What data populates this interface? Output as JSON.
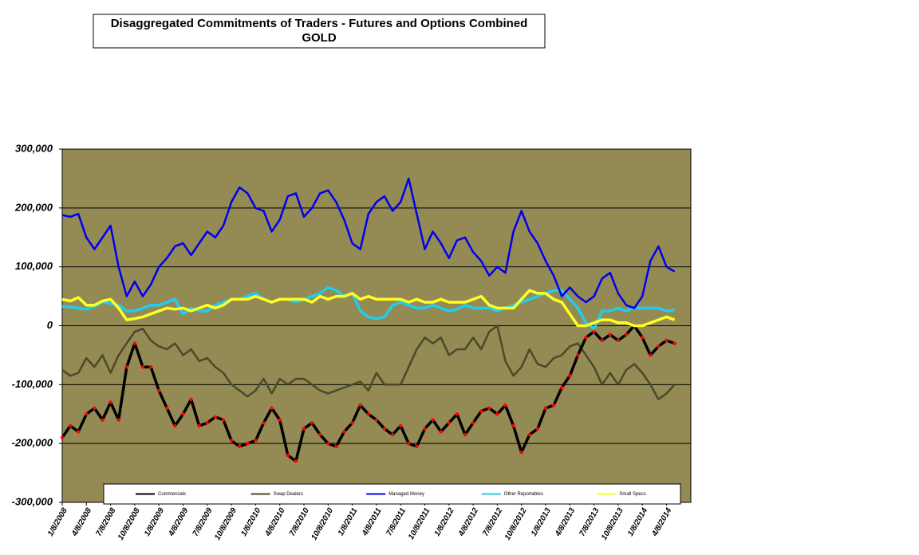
{
  "chart_data": {
    "type": "line",
    "title": "Disaggregated Commitments of Traders - Futures and Options Combined",
    "subtitle": "GOLD",
    "categories": [
      "1/8/2008",
      null,
      null,
      "4/8/2008",
      null,
      null,
      "7/8/2008",
      null,
      null,
      "10/8/2008",
      null,
      null,
      "1/8/2009",
      null,
      null,
      "4/8/2009",
      null,
      null,
      "7/8/2009",
      null,
      null,
      "10/8/2009",
      null,
      null,
      "1/8/2010",
      null,
      null,
      "4/8/2010",
      null,
      null,
      "7/8/2010",
      null,
      null,
      "10/8/2010",
      null,
      null,
      "1/8/2011",
      null,
      null,
      "4/8/2011",
      null,
      null,
      "7/8/2011",
      null,
      null,
      "10/8/2011",
      null,
      null,
      "1/8/2012",
      null,
      null,
      "4/8/2012",
      null,
      null,
      "7/8/2012",
      null,
      null,
      "10/8/2012",
      null,
      null,
      "1/8/2013",
      null,
      null,
      "4/8/2013",
      null,
      null,
      "7/8/2013",
      null,
      null,
      "10/8/2013",
      null,
      null,
      "1/8/2014",
      null,
      null,
      "4/8/2014",
      null
    ],
    "series": [
      {
        "name": "Commercials",
        "color": "#000000",
        "marker_color": "#ff0000",
        "values": [
          -190000,
          -170000,
          -180000,
          -150000,
          -140000,
          -160000,
          -130000,
          -160000,
          -70000,
          -30000,
          -70000,
          -70000,
          -110000,
          -140000,
          -170000,
          -150000,
          -125000,
          -170000,
          -165000,
          -155000,
          -160000,
          -195000,
          -205000,
          -200000,
          -195000,
          -165000,
          -140000,
          -160000,
          -220000,
          -230000,
          -175000,
          -165000,
          -185000,
          -200000,
          -205000,
          -180000,
          -165000,
          -135000,
          -150000,
          -160000,
          -175000,
          -185000,
          -170000,
          -200000,
          -205000,
          -175000,
          -160000,
          -180000,
          -165000,
          -150000,
          -185000,
          -165000,
          -145000,
          -140000,
          -150000,
          -135000,
          -170000,
          -215000,
          -185000,
          -175000,
          -140000,
          -135000,
          -105000,
          -85000,
          -50000,
          -20000,
          -10000,
          -25000,
          -15000,
          -25000,
          -15000,
          0,
          -20000,
          -50000,
          -35000,
          -25000,
          -30000
        ]
      },
      {
        "name": "Swap Dealers",
        "color": "#4a4a2a",
        "values": [
          -75000,
          -85000,
          -80000,
          -55000,
          -70000,
          -50000,
          -80000,
          -50000,
          -30000,
          -10000,
          -5000,
          -25000,
          -35000,
          -40000,
          -30000,
          -50000,
          -40000,
          -60000,
          -55000,
          -70000,
          -80000,
          -100000,
          -110000,
          -120000,
          -110000,
          -90000,
          -115000,
          -90000,
          -100000,
          -90000,
          -90000,
          -100000,
          -110000,
          -115000,
          -110000,
          -105000,
          -100000,
          -95000,
          -110000,
          -80000,
          -100000,
          -100000,
          -100000,
          -70000,
          -40000,
          -20000,
          -30000,
          -20000,
          -50000,
          -40000,
          -40000,
          -20000,
          -40000,
          -10000,
          0,
          -60000,
          -85000,
          -70000,
          -40000,
          -65000,
          -70000,
          -55000,
          -50000,
          -35000,
          -30000,
          -50000,
          -70000,
          -100000,
          -80000,
          -100000,
          -75000,
          -65000,
          -80000,
          -100000,
          -125000,
          -115000,
          -100000
        ]
      },
      {
        "name": "Managed Money",
        "color": "#0000ee",
        "values": [
          188000,
          185000,
          190000,
          150000,
          130000,
          150000,
          170000,
          100000,
          50000,
          75000,
          50000,
          70000,
          100000,
          115000,
          135000,
          140000,
          120000,
          140000,
          160000,
          150000,
          170000,
          210000,
          235000,
          225000,
          200000,
          195000,
          160000,
          180000,
          220000,
          225000,
          185000,
          200000,
          225000,
          230000,
          210000,
          180000,
          140000,
          130000,
          190000,
          210000,
          220000,
          195000,
          210000,
          250000,
          190000,
          130000,
          160000,
          140000,
          115000,
          145000,
          150000,
          125000,
          110000,
          85000,
          100000,
          90000,
          160000,
          195000,
          160000,
          140000,
          110000,
          85000,
          50000,
          65000,
          50000,
          40000,
          50000,
          80000,
          90000,
          55000,
          35000,
          30000,
          50000,
          110000,
          135000,
          100000,
          92000
        ]
      },
      {
        "name": "Other Reportables",
        "color": "#22ccee",
        "values": [
          33000,
          32000,
          30000,
          28000,
          33000,
          40000,
          38000,
          35000,
          25000,
          25000,
          30000,
          35000,
          35000,
          40000,
          45000,
          20000,
          30000,
          25000,
          25000,
          35000,
          40000,
          45000,
          45000,
          50000,
          55000,
          45000,
          40000,
          45000,
          45000,
          40000,
          45000,
          50000,
          55000,
          65000,
          60000,
          50000,
          55000,
          25000,
          15000,
          12000,
          15000,
          35000,
          40000,
          35000,
          30000,
          30000,
          35000,
          30000,
          25000,
          28000,
          35000,
          30000,
          30000,
          30000,
          25000,
          30000,
          35000,
          40000,
          45000,
          50000,
          55000,
          60000,
          60000,
          45000,
          30000,
          5000,
          -5000,
          25000,
          25000,
          30000,
          25000,
          30000,
          30000,
          30000,
          30000,
          25000,
          27000
        ]
      },
      {
        "name": "Small Specs",
        "color": "#ffff22",
        "values": [
          45000,
          42000,
          48000,
          35000,
          35000,
          42000,
          45000,
          30000,
          10000,
          12000,
          15000,
          20000,
          25000,
          30000,
          28000,
          30000,
          25000,
          30000,
          35000,
          30000,
          35000,
          45000,
          45000,
          45000,
          50000,
          45000,
          40000,
          45000,
          45000,
          45000,
          45000,
          40000,
          50000,
          45000,
          50000,
          50000,
          55000,
          45000,
          50000,
          45000,
          45000,
          45000,
          45000,
          40000,
          45000,
          40000,
          40000,
          45000,
          40000,
          40000,
          40000,
          45000,
          50000,
          35000,
          30000,
          30000,
          30000,
          45000,
          60000,
          55000,
          55000,
          45000,
          40000,
          20000,
          0,
          0,
          5000,
          10000,
          10000,
          5000,
          5000,
          0,
          0,
          5000,
          10000,
          15000,
          10000
        ]
      }
    ],
    "ylim": [
      -300000,
      300000
    ],
    "yticks": [
      {
        "value": -300000,
        "label": "-300,000"
      },
      {
        "value": -200000,
        "label": "-200,000"
      },
      {
        "value": -100000,
        "label": "-100,000"
      },
      0,
      {
        "value": 100000,
        "label": "100,000"
      },
      {
        "value": 200000,
        "label": "200,000"
      },
      {
        "value": 300000,
        "label": "300,000"
      }
    ],
    "grid": true,
    "legend": "bottom",
    "background": "#948a54"
  }
}
